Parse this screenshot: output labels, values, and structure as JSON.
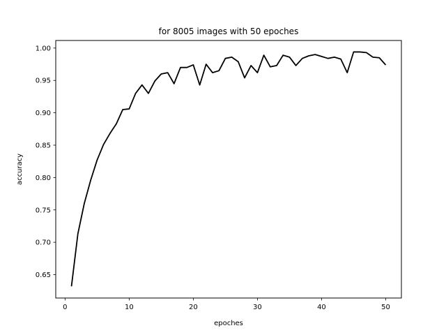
{
  "chart_data": {
    "type": "line",
    "title": "for 8005 images with 50 epoches",
    "xlabel": "epoches",
    "ylabel": "accuracy",
    "xlim": [
      -1.45,
      52.45
    ],
    "ylim": [
      0.6139,
      1.0117
    ],
    "xticks": [
      0,
      10,
      20,
      30,
      40,
      50
    ],
    "yticks": [
      0.65,
      0.7,
      0.75,
      0.8,
      0.85,
      0.9,
      0.95,
      1.0
    ],
    "ytick_labels": [
      "0.65",
      "0.70",
      "0.75",
      "0.80",
      "0.85",
      "0.90",
      "0.95",
      "1.00"
    ],
    "grid": false,
    "series": [
      {
        "color": "#000000",
        "x": [
          1,
          2,
          3,
          4,
          5,
          6,
          7,
          8,
          9,
          10,
          11,
          12,
          13,
          14,
          15,
          16,
          17,
          18,
          19,
          20,
          21,
          22,
          23,
          24,
          25,
          26,
          27,
          28,
          29,
          30,
          31,
          32,
          33,
          34,
          35,
          36,
          37,
          38,
          39,
          40,
          41,
          42,
          43,
          44,
          45,
          46,
          47,
          48,
          49,
          50
        ],
        "y": [
          0.632,
          0.713,
          0.76,
          0.796,
          0.827,
          0.851,
          0.868,
          0.883,
          0.905,
          0.906,
          0.93,
          0.943,
          0.93,
          0.949,
          0.96,
          0.962,
          0.945,
          0.97,
          0.97,
          0.974,
          0.943,
          0.975,
          0.962,
          0.965,
          0.984,
          0.986,
          0.979,
          0.954,
          0.973,
          0.962,
          0.989,
          0.971,
          0.973,
          0.989,
          0.986,
          0.973,
          0.984,
          0.988,
          0.99,
          0.987,
          0.984,
          0.986,
          0.983,
          0.962,
          0.994,
          0.994,
          0.993,
          0.986,
          0.985,
          0.974
        ]
      }
    ]
  }
}
